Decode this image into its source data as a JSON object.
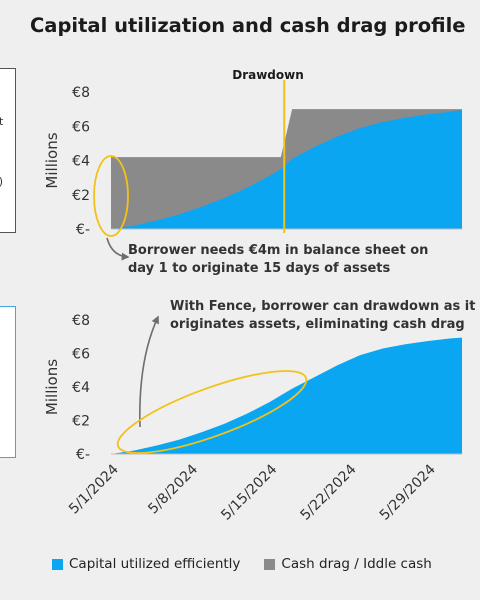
{
  "title": "Capital utilization and cash drag profile",
  "left_fragments": {
    "top_1": "t",
    "top_2": "s)"
  },
  "colors": {
    "efficient": "#0aa6f2",
    "drag": "#8a8a8a",
    "drawdown_line": "#f2c218",
    "ellipse": "#f2c218",
    "arrow": "#6e6e6e",
    "text": "#333333"
  },
  "legend": {
    "efficient": "Capital utilized efficiently",
    "drag": "Cash drag / Iddle cash"
  },
  "annotations": {
    "drawdown": "Drawdown",
    "top_note_1": "Borrower needs €4m in balance sheet on",
    "top_note_2": "day 1 to originate 15 days of assets",
    "bottom_note_1": "With Fence, borrower can drawdown as it",
    "bottom_note_2": "originates assets, eliminating cash drag"
  },
  "chart_data": [
    {
      "type": "area",
      "title": "",
      "xlabel": "",
      "ylabel": "Millions",
      "y_ticks": [
        "€8",
        "€6",
        "€4",
        "€2",
        "€-"
      ],
      "ylim": [
        0,
        8
      ],
      "x": [
        0,
        2,
        4,
        6,
        8,
        10,
        12,
        14,
        15,
        16,
        18,
        20,
        22,
        24,
        26,
        28,
        30,
        31
      ],
      "series": [
        {
          "name": "Capital utilized efficiently",
          "values": [
            0,
            0.2,
            0.5,
            0.85,
            1.3,
            1.8,
            2.4,
            3.1,
            3.5,
            4.1,
            4.8,
            5.4,
            5.9,
            6.25,
            6.5,
            6.7,
            6.85,
            6.95
          ]
        },
        {
          "name": "Cash drag / Iddle cash",
          "values": [
            4.2,
            4.2,
            4.2,
            4.2,
            4.2,
            4.2,
            4.2,
            4.2,
            4.2,
            7.0,
            7.0,
            7.0,
            7.0,
            7.0,
            7.0,
            7.0,
            7.0,
            7.0
          ]
        }
      ],
      "annotation": "Drawdown at 5/16/2024"
    },
    {
      "type": "area",
      "title": "",
      "xlabel": "",
      "ylabel": "Millions",
      "y_ticks": [
        "€8",
        "€6",
        "€4",
        "€2",
        "€-"
      ],
      "ylim": [
        0,
        8
      ],
      "x_tick_labels": [
        "5/1/2024",
        "5/8/2024",
        "5/15/2024",
        "5/22/2024",
        "5/29/2024"
      ],
      "x": [
        0,
        2,
        4,
        6,
        8,
        10,
        12,
        14,
        16,
        18,
        20,
        22,
        24,
        26,
        28,
        30,
        31
      ],
      "series": [
        {
          "name": "Capital utilized efficiently",
          "values": [
            0,
            0.2,
            0.5,
            0.85,
            1.3,
            1.8,
            2.4,
            3.1,
            3.9,
            4.6,
            5.3,
            5.9,
            6.3,
            6.55,
            6.75,
            6.9,
            6.95
          ]
        }
      ]
    }
  ]
}
